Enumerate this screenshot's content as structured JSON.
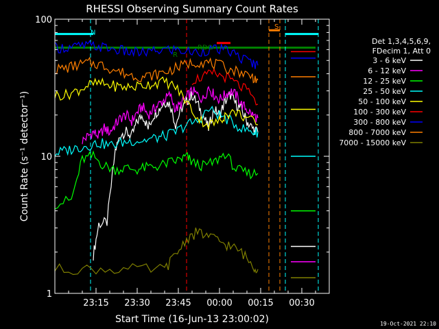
{
  "chart_data": {
    "type": "line",
    "title": "RHESSI Observing Summary Count Rates",
    "xlabel": "Start Time (16-Jun-13 23:00:02)",
    "ylabel": "Count Rate (s⁻¹ detector⁻¹)",
    "yscale": "log",
    "ylim": [
      1,
      100
    ],
    "xlim_minutes": [
      0,
      100
    ],
    "x_ticks": [
      "23:15",
      "23:30",
      "23:45",
      "00:00",
      "00:15",
      "00:30"
    ],
    "x_tick_minutes": [
      15,
      30,
      45,
      60,
      75,
      90
    ],
    "y_ticks": [
      "1",
      "10",
      "100"
    ],
    "legend_header": [
      "Det 1,3,4,5,6,9,",
      "FDecim 1, Att 0"
    ],
    "series": [
      {
        "name": "3 - 6 keV",
        "color": "#ffffff",
        "points": [
          [
            14,
            1.9
          ],
          [
            16,
            3.2
          ],
          [
            19,
            3.3
          ],
          [
            22,
            11
          ],
          [
            24,
            14.5
          ],
          [
            26,
            15
          ],
          [
            28,
            14
          ],
          [
            30,
            18
          ],
          [
            32,
            20
          ],
          [
            34,
            16
          ],
          [
            36,
            20
          ],
          [
            38,
            22
          ],
          [
            40,
            25
          ],
          [
            42,
            24
          ],
          [
            44,
            17
          ],
          [
            46,
            22
          ],
          [
            48,
            25
          ],
          [
            50,
            28
          ],
          [
            52,
            24
          ],
          [
            54,
            20
          ],
          [
            56,
            16
          ],
          [
            58,
            22
          ],
          [
            60,
            20
          ],
          [
            62,
            25
          ],
          [
            64,
            28
          ],
          [
            66,
            24
          ],
          [
            68,
            22
          ],
          [
            70,
            18
          ],
          [
            72,
            16
          ],
          [
            74,
            15
          ]
        ]
      },
      {
        "name": "6 - 12 keV",
        "color": "#ff00ff",
        "points": [
          [
            10,
            13
          ],
          [
            12,
            14
          ],
          [
            14,
            15
          ],
          [
            16,
            14
          ],
          [
            18,
            16
          ],
          [
            20,
            15
          ],
          [
            22,
            17
          ],
          [
            24,
            19
          ],
          [
            26,
            20
          ],
          [
            28,
            18
          ],
          [
            30,
            21
          ],
          [
            32,
            23
          ],
          [
            34,
            20
          ],
          [
            36,
            22
          ],
          [
            38,
            24
          ],
          [
            40,
            26
          ],
          [
            42,
            28
          ],
          [
            44,
            22
          ],
          [
            46,
            24
          ],
          [
            48,
            27
          ],
          [
            50,
            30
          ],
          [
            52,
            28
          ],
          [
            54,
            26
          ],
          [
            56,
            32
          ],
          [
            58,
            28
          ],
          [
            60,
            26
          ],
          [
            62,
            28
          ],
          [
            64,
            30
          ],
          [
            66,
            28
          ],
          [
            68,
            24
          ],
          [
            70,
            22
          ],
          [
            72,
            20
          ],
          [
            74,
            19
          ]
        ]
      },
      {
        "name": "12 - 25 keV",
        "color": "#00ff00",
        "points": [
          [
            0,
            4.5
          ],
          [
            6,
            4.8
          ],
          [
            10,
            9.5
          ],
          [
            14,
            10
          ],
          [
            18,
            8.5
          ],
          [
            22,
            8
          ],
          [
            26,
            8.2
          ],
          [
            30,
            8
          ],
          [
            34,
            8.3
          ],
          [
            38,
            8.5
          ],
          [
            42,
            9
          ],
          [
            46,
            9.5
          ],
          [
            48,
            10
          ],
          [
            50,
            9
          ],
          [
            54,
            8.5
          ],
          [
            58,
            9
          ],
          [
            62,
            10.5
          ],
          [
            66,
            8
          ],
          [
            70,
            7.5
          ],
          [
            74,
            7.5
          ]
        ]
      },
      {
        "name": "25 - 50 keV",
        "color": "#00ffff",
        "points": [
          [
            0,
            10.5
          ],
          [
            4,
            11
          ],
          [
            8,
            11.5
          ],
          [
            12,
            12
          ],
          [
            16,
            12.5
          ],
          [
            20,
            12
          ],
          [
            24,
            12.5
          ],
          [
            28,
            13
          ],
          [
            32,
            13
          ],
          [
            36,
            13.5
          ],
          [
            40,
            14
          ],
          [
            44,
            15
          ],
          [
            48,
            17
          ],
          [
            52,
            18
          ],
          [
            56,
            22
          ],
          [
            60,
            20
          ],
          [
            64,
            18
          ],
          [
            68,
            16
          ],
          [
            72,
            15
          ],
          [
            74,
            15
          ]
        ]
      },
      {
        "name": "50 - 100 keV",
        "color": "#ffff00",
        "points": [
          [
            0,
            28
          ],
          [
            4,
            28
          ],
          [
            8,
            30
          ],
          [
            12,
            33
          ],
          [
            16,
            34
          ],
          [
            20,
            33
          ],
          [
            24,
            32
          ],
          [
            28,
            32
          ],
          [
            32,
            33
          ],
          [
            36,
            34
          ],
          [
            40,
            35
          ],
          [
            44,
            32
          ],
          [
            48,
            25
          ],
          [
            52,
            19
          ],
          [
            56,
            17
          ],
          [
            60,
            18
          ],
          [
            62,
            20
          ],
          [
            66,
            21
          ],
          [
            70,
            19
          ],
          [
            74,
            17
          ]
        ]
      },
      {
        "name": "100 - 300 keV",
        "color": "#ff0000",
        "points": [
          [
            50,
            36
          ],
          [
            54,
            38
          ],
          [
            58,
            40
          ],
          [
            62,
            38
          ],
          [
            66,
            34
          ],
          [
            70,
            30
          ],
          [
            74,
            24
          ]
        ]
      },
      {
        "name": "300 - 800 keV",
        "color": "#0000ff",
        "points": [
          [
            0,
            62
          ],
          [
            4,
            62
          ],
          [
            8,
            63
          ],
          [
            12,
            64
          ],
          [
            16,
            63
          ],
          [
            20,
            61
          ],
          [
            24,
            59
          ],
          [
            28,
            57
          ],
          [
            32,
            57
          ],
          [
            36,
            58
          ],
          [
            40,
            60
          ],
          [
            44,
            60
          ],
          [
            48,
            58
          ],
          [
            52,
            57
          ],
          [
            56,
            60
          ],
          [
            60,
            60
          ],
          [
            64,
            58
          ],
          [
            68,
            52
          ],
          [
            72,
            48
          ],
          [
            74,
            46
          ]
        ]
      },
      {
        "name": "800 - 7000 keV",
        "color": "#ff7f00",
        "points": [
          [
            0,
            43
          ],
          [
            4,
            44
          ],
          [
            8,
            46
          ],
          [
            12,
            48
          ],
          [
            16,
            47
          ],
          [
            20,
            44
          ],
          [
            24,
            41
          ],
          [
            28,
            39
          ],
          [
            32,
            38
          ],
          [
            36,
            39
          ],
          [
            40,
            41
          ],
          [
            44,
            44
          ],
          [
            48,
            47
          ],
          [
            52,
            49
          ],
          [
            56,
            48
          ],
          [
            60,
            46
          ],
          [
            64,
            43
          ],
          [
            68,
            41
          ],
          [
            72,
            38
          ],
          [
            74,
            36
          ]
        ]
      },
      {
        "name": "7000 - 15000 keV",
        "color": "#808000",
        "points": [
          [
            0,
            1.5
          ],
          [
            10,
            1.5
          ],
          [
            20,
            1.5
          ],
          [
            30,
            1.5
          ],
          [
            40,
            1.5
          ],
          [
            44,
            1.9
          ],
          [
            48,
            2.5
          ],
          [
            52,
            2.8
          ],
          [
            56,
            2.6
          ],
          [
            60,
            2.4
          ],
          [
            64,
            2.2
          ],
          [
            68,
            2.0
          ],
          [
            72,
            1.6
          ],
          [
            74,
            1.5
          ]
        ]
      }
    ],
    "right_segment_values": [
      {
        "color": "#ffffff",
        "y": 2.2
      },
      {
        "color": "#ff00ff",
        "y": 1.7
      },
      {
        "color": "#00ff00",
        "y": 4.0
      },
      {
        "color": "#00ffff",
        "y": 10.0
      },
      {
        "color": "#ffff00",
        "y": 22.0
      },
      {
        "color": "#ff0000",
        "y": 58.0
      },
      {
        "color": "#0000ff",
        "y": 52.0
      },
      {
        "color": "#ff7f00",
        "y": 38.0
      },
      {
        "color": "#808000",
        "y": 1.3
      }
    ],
    "annotations": [
      {
        "text": "N",
        "color": "#00ffff",
        "x": 13,
        "y": 77
      },
      {
        "text": "RDO",
        "color": "#008000",
        "x": 52,
        "y": 60
      },
      {
        "text": "R",
        "color": "#008000",
        "x": 43,
        "y": 53
      },
      {
        "text": "S",
        "color": "#ff7f00",
        "x": 80,
        "y": 85
      }
    ],
    "flag_bars": [
      {
        "color": "#008000",
        "x": [
          0,
          95
        ],
        "y": 62
      },
      {
        "color": "#00ffff",
        "x": [
          0,
          14
        ],
        "y": 78
      },
      {
        "color": "#ff7f00",
        "x": [
          78,
          82
        ],
        "y": 83
      },
      {
        "color": "#00ffff",
        "x": [
          84,
          96
        ],
        "y": 78
      },
      {
        "color": "#ff0000",
        "x": [
          59,
          64
        ],
        "y": 67
      }
    ],
    "vertical_markers": [
      {
        "color": "#00ffff",
        "x": 0
      },
      {
        "color": "#00ffff",
        "x": 13
      },
      {
        "color": "#ff0000",
        "x": 48
      },
      {
        "color": "#ff7f00",
        "x": 78
      },
      {
        "color": "#ff7f00",
        "x": 82
      },
      {
        "color": "#00ffff",
        "x": 84
      },
      {
        "color": "#00ffff",
        "x": 96
      }
    ],
    "footer_date": "19-Oct-2021 22:10"
  }
}
